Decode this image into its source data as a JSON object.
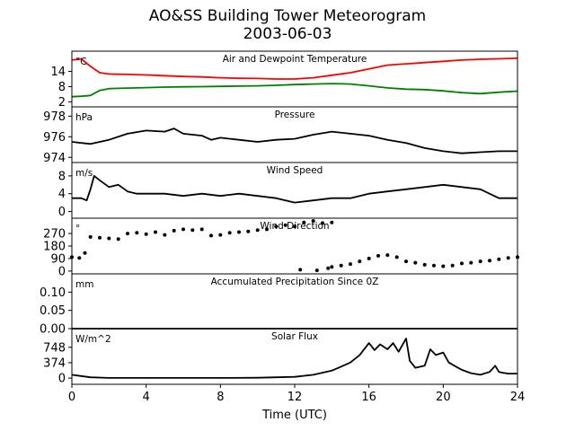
{
  "title": "AO&SS Building Tower Meteorogram",
  "subtitle": "2003-06-03",
  "colors": {
    "temperature": "#ff0000",
    "dewpoint": "#008000",
    "line": "#000000"
  },
  "chart_data": [
    {
      "type": "line",
      "title": "Air and Dewpoint Temperature",
      "unit": "°C",
      "xlim": [
        0,
        24
      ],
      "ylim": [
        0,
        22
      ],
      "yticks": [
        "2",
        "8",
        "14"
      ],
      "ytick_values": [
        2,
        8,
        14
      ],
      "series": [
        {
          "color": "#ff0000",
          "x": [
            0,
            0.5,
            1,
            1.5,
            2,
            3,
            4,
            5,
            6,
            7,
            8,
            9,
            10,
            11,
            12,
            13,
            14,
            15,
            16,
            17,
            18,
            19,
            20,
            21,
            22,
            23,
            24
          ],
          "values": [
            18.5,
            19,
            16,
            13.5,
            13,
            12.8,
            12.6,
            12.3,
            12,
            11.8,
            11.5,
            11.3,
            11.2,
            11,
            11,
            11.5,
            12.5,
            13.5,
            15,
            16.5,
            17,
            17.5,
            18,
            18.5,
            18.8,
            19,
            19.2
          ]
        },
        {
          "color": "#008000",
          "x": [
            0,
            0.5,
            1,
            1.5,
            2,
            3,
            4,
            5,
            6,
            7,
            8,
            9,
            10,
            11,
            12,
            13,
            14,
            15,
            16,
            17,
            18,
            19,
            20,
            21,
            22,
            23,
            24
          ],
          "values": [
            4,
            4.2,
            4.5,
            6.5,
            7.2,
            7.4,
            7.6,
            7.8,
            7.9,
            8,
            8.1,
            8.2,
            8.3,
            8.5,
            8.8,
            9,
            9.2,
            9,
            8.3,
            7.5,
            7,
            6.8,
            6.3,
            5.6,
            5.2,
            5.8,
            6.2
          ]
        }
      ]
    },
    {
      "type": "line",
      "title": "Pressure",
      "unit": "hPa",
      "xlim": [
        0,
        24
      ],
      "ylim": [
        973.5,
        978.9
      ],
      "yticks": [
        "974",
        "976",
        "978"
      ],
      "ytick_values": [
        974,
        976,
        978
      ],
      "series": [
        {
          "color": "#000000",
          "x": [
            0,
            1,
            2,
            3,
            4,
            5,
            5.5,
            6,
            7,
            7.5,
            8,
            9,
            10,
            11,
            12,
            13,
            14,
            15,
            16,
            17,
            18,
            19,
            20,
            21,
            22,
            23,
            24
          ],
          "values": [
            975.5,
            975.3,
            975.7,
            976.3,
            976.6,
            976.5,
            976.8,
            976.3,
            976.1,
            975.7,
            975.9,
            975.7,
            975.5,
            975.7,
            975.8,
            976.2,
            976.5,
            976.3,
            976.1,
            975.7,
            975.4,
            974.9,
            974.6,
            974.4,
            974.5,
            974.6,
            974.6
          ]
        }
      ]
    },
    {
      "type": "line",
      "title": "Wind Speed",
      "unit": "m/s",
      "xlim": [
        0,
        24
      ],
      "ylim": [
        -1.5,
        11
      ],
      "yticks": [
        "0",
        "4",
        "8"
      ],
      "ytick_values": [
        0,
        4,
        8
      ],
      "series": [
        {
          "color": "#000000",
          "x": [
            0,
            0.5,
            0.8,
            1,
            1.2,
            1.5,
            2,
            2.5,
            3,
            3.5,
            4,
            5,
            6,
            7,
            8,
            9,
            10,
            11,
            12,
            13,
            14,
            15,
            16,
            17,
            18,
            19,
            20,
            21,
            22,
            23,
            24
          ],
          "values": [
            3,
            3,
            2.5,
            5,
            8,
            7,
            5.5,
            6,
            4.5,
            4,
            4,
            4,
            3.5,
            4,
            3.5,
            4,
            3.5,
            3,
            2,
            2.5,
            3,
            3,
            4,
            4.5,
            5,
            5.5,
            6,
            5.5,
            5,
            3,
            3
          ]
        }
      ]
    },
    {
      "type": "scatter",
      "title": "Wind Direction",
      "unit": "°",
      "xlim": [
        0,
        24
      ],
      "ylim": [
        -20,
        380
      ],
      "yticks": [
        "0",
        "90",
        "180",
        "270"
      ],
      "ytick_values": [
        0,
        90,
        180,
        270
      ],
      "series": [
        {
          "color": "#000000",
          "x": [
            0,
            0.4,
            0.7,
            1,
            1.5,
            2,
            2.5,
            3,
            3.5,
            4,
            4.5,
            5,
            5.5,
            6,
            6.5,
            7,
            7.5,
            8,
            8.5,
            9,
            9.5,
            10,
            10.5,
            11,
            11.5,
            12,
            12.5,
            13,
            13.5,
            14,
            12.3,
            13.2,
            13.8,
            14,
            14.5,
            15,
            15.5,
            16,
            16.5,
            17,
            17.5,
            18,
            18.5,
            19,
            19.5,
            20,
            20.5,
            21,
            21.5,
            22,
            22.5,
            23,
            23.5,
            24
          ],
          "values": [
            100,
            95,
            130,
            245,
            240,
            235,
            230,
            270,
            275,
            265,
            280,
            260,
            290,
            300,
            295,
            300,
            255,
            260,
            275,
            280,
            285,
            295,
            300,
            320,
            330,
            320,
            350,
            360,
            345,
            350,
            10,
            5,
            20,
            30,
            40,
            50,
            70,
            90,
            110,
            115,
            100,
            70,
            60,
            45,
            40,
            35,
            40,
            55,
            60,
            70,
            75,
            85,
            95,
            100
          ]
        }
      ]
    },
    {
      "type": "line",
      "title": "Accumulated Precipitation Since 0Z",
      "unit": "mm",
      "xlim": [
        0,
        24
      ],
      "ylim": [
        0,
        0.15
      ],
      "yticks": [
        "0.00",
        "0.05",
        "0.10"
      ],
      "ytick_values": [
        0,
        0.05,
        0.1
      ],
      "series": [
        {
          "color": "#000000",
          "x": [
            0,
            24
          ],
          "values": [
            0,
            0
          ]
        }
      ]
    },
    {
      "type": "line",
      "title": "Solar Flux",
      "unit": "W/m^2",
      "xlim": [
        0,
        24
      ],
      "ylim": [
        -150,
        1200
      ],
      "yticks": [
        "0",
        "374",
        "748"
      ],
      "ytick_values": [
        0,
        374,
        748
      ],
      "series": [
        {
          "color": "#000000",
          "x": [
            0,
            0.5,
            1,
            2,
            4,
            6,
            8,
            10,
            12,
            13,
            14,
            14.5,
            15,
            15.5,
            16,
            16.3,
            16.6,
            17,
            17.3,
            17.6,
            18,
            18.2,
            18.5,
            19,
            19.3,
            19.6,
            20,
            20.3,
            20.6,
            21,
            21.5,
            22,
            22.5,
            22.8,
            23,
            23.2,
            23.5,
            24
          ],
          "values": [
            80,
            50,
            20,
            5,
            5,
            5,
            5,
            10,
            30,
            80,
            180,
            280,
            380,
            560,
            850,
            680,
            820,
            700,
            850,
            640,
            960,
            420,
            250,
            300,
            700,
            560,
            620,
            380,
            300,
            200,
            120,
            80,
            150,
            300,
            150,
            130,
            110,
            110
          ]
        }
      ]
    }
  ],
  "xaxis": {
    "label": "Time (UTC)",
    "ticks": [
      "0",
      "4",
      "8",
      "12",
      "16",
      "20",
      "24"
    ],
    "tick_values": [
      0,
      4,
      8,
      12,
      16,
      20,
      24
    ]
  }
}
